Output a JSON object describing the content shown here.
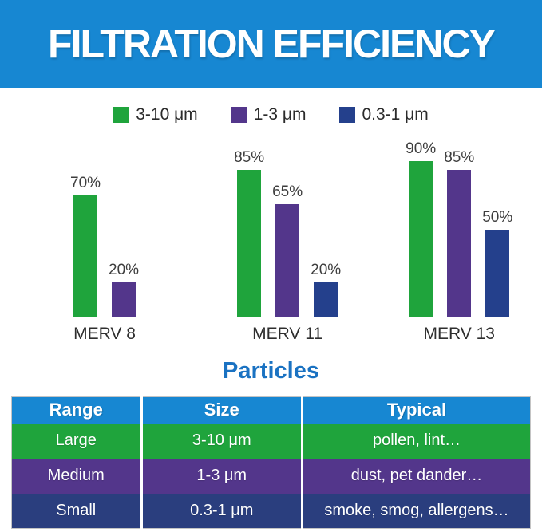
{
  "header": {
    "title": "FILTRATION EFFICIENCY",
    "bg_color": "#1787d2"
  },
  "legend": {
    "items": [
      {
        "label": "3-10 μm",
        "color": "#1fa43c"
      },
      {
        "label": "1-3 μm",
        "color": "#53368b"
      },
      {
        "label": "0.3-1 μm",
        "color": "#24408c"
      }
    ]
  },
  "chart_data": {
    "type": "bar",
    "title": "FILTRATION EFFICIENCY",
    "categories": [
      "MERV 8",
      "MERV 11",
      "MERV 13"
    ],
    "series": [
      {
        "name": "3-10 μm",
        "color": "#1fa43c",
        "values": [
          70,
          85,
          90
        ]
      },
      {
        "name": "1-3 μm",
        "color": "#53368b",
        "values": [
          20,
          65,
          85
        ]
      },
      {
        "name": "0.3-1 μm",
        "color": "#24408c",
        "values": [
          null,
          20,
          50
        ]
      }
    ],
    "unit": "%",
    "ylim": [
      0,
      100
    ],
    "grid": false,
    "legend_position": "top",
    "value_label_format": "percent"
  },
  "particles": {
    "title": "Particles",
    "header_bg": "#1787d2",
    "columns": [
      "Range",
      "Size",
      "Typical"
    ],
    "rows": [
      {
        "range": "Large",
        "size": "3-10 μm",
        "typical": "pollen, lint…",
        "color": "#1fa43c"
      },
      {
        "range": "Medium",
        "size": "1-3 μm",
        "typical": "dust, pet dander…",
        "color": "#53368b"
      },
      {
        "range": "Small",
        "size": "0.3-1 μm",
        "typical": "smoke, smog, allergens…",
        "color": "#2a3e7e"
      }
    ]
  }
}
